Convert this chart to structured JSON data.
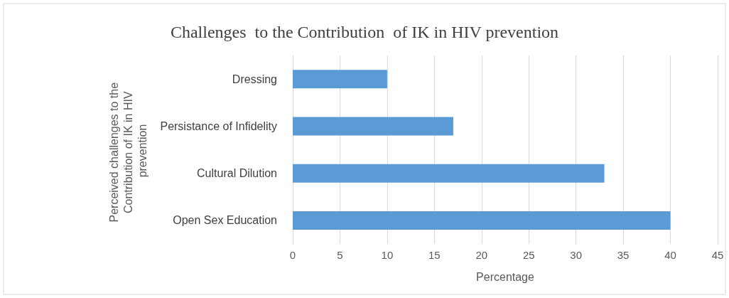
{
  "chart_data": {
    "type": "bar",
    "orientation": "horizontal",
    "title": "Challenges  to the Contribution  of IK in HIV prevention",
    "xlabel": "Percentage",
    "ylabel": "Perceived challenges to the Contribution of IK in HIV prevention",
    "categories": [
      "Dressing",
      "Persistance of Infidelity",
      "Cultural Dilution",
      "Open Sex Education"
    ],
    "values": [
      10,
      17,
      33,
      40
    ],
    "color": "#5b9bd5",
    "xlim": [
      0,
      45
    ],
    "xticks": [
      0,
      5,
      10,
      15,
      20,
      25,
      30,
      35,
      40,
      45
    ],
    "grid": "x"
  }
}
